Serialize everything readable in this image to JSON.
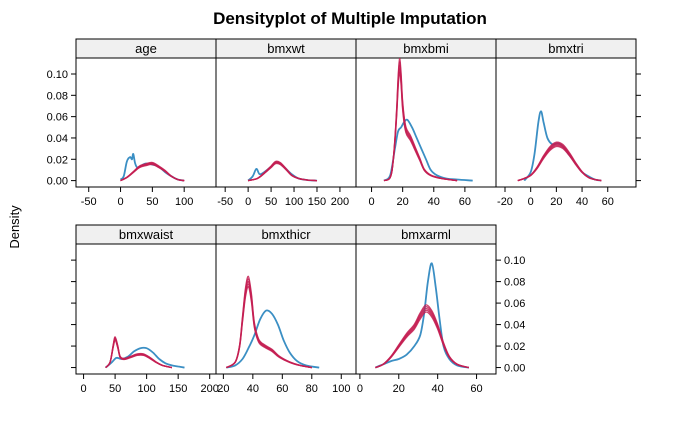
{
  "chart_data": {
    "type": "line",
    "title": "Densityplot of Multiple Imputation",
    "ylabel": "Density",
    "ylim": [
      -0.006,
      0.115
    ],
    "y_ticks": [
      0,
      0.02,
      0.04,
      0.06,
      0.08,
      0.1
    ],
    "y_tick_labels": [
      "0.00",
      "0.02",
      "0.04",
      "0.06",
      "0.08",
      "0.10"
    ],
    "colors": {
      "observed": "#3b8fc4",
      "imputed": "#c41e52",
      "strip_bg": "#f0f0f0"
    },
    "panels": [
      {
        "name": "age",
        "xlim": [
          -70,
          150
        ],
        "x_ticks": [
          -50,
          0,
          50,
          100
        ],
        "x_tick_labels": [
          "-50",
          "0",
          "50",
          "100"
        ],
        "observed": [
          [
            0,
            0.001
          ],
          [
            5,
            0.004
          ],
          [
            10,
            0.018
          ],
          [
            15,
            0.022
          ],
          [
            18,
            0.02
          ],
          [
            20,
            0.025
          ],
          [
            23,
            0.016
          ],
          [
            27,
            0.012
          ],
          [
            32,
            0.014
          ],
          [
            40,
            0.016
          ],
          [
            50,
            0.015
          ],
          [
            60,
            0.013
          ],
          [
            70,
            0.008
          ],
          [
            80,
            0.004
          ],
          [
            90,
            0.001
          ],
          [
            100,
            0
          ]
        ],
        "imputed": [
          [
            0,
            0
          ],
          [
            10,
            0.003
          ],
          [
            20,
            0.008
          ],
          [
            30,
            0.013
          ],
          [
            40,
            0.015
          ],
          [
            50,
            0.016
          ],
          [
            60,
            0.013
          ],
          [
            70,
            0.009
          ],
          [
            80,
            0.004
          ],
          [
            90,
            0.001
          ],
          [
            100,
            0
          ]
        ]
      },
      {
        "name": "bmxwt",
        "xlim": [
          -70,
          235
        ],
        "x_ticks": [
          -50,
          0,
          50,
          100,
          150,
          200
        ],
        "x_tick_labels": [
          "-50",
          "0",
          "50",
          "100",
          "150",
          "200"
        ],
        "observed": [
          [
            0,
            0
          ],
          [
            10,
            0.004
          ],
          [
            18,
            0.011
          ],
          [
            25,
            0.006
          ],
          [
            35,
            0.008
          ],
          [
            50,
            0.013
          ],
          [
            60,
            0.017
          ],
          [
            70,
            0.016
          ],
          [
            80,
            0.012
          ],
          [
            95,
            0.006
          ],
          [
            110,
            0.002
          ],
          [
            130,
            0.0005
          ],
          [
            150,
            0
          ]
        ],
        "imputed": [
          [
            0,
            0
          ],
          [
            20,
            0.002
          ],
          [
            35,
            0.007
          ],
          [
            50,
            0.013
          ],
          [
            60,
            0.017
          ],
          [
            70,
            0.016
          ],
          [
            82,
            0.011
          ],
          [
            95,
            0.005
          ],
          [
            110,
            0.002
          ],
          [
            130,
            0.0005
          ],
          [
            150,
            0
          ]
        ]
      },
      {
        "name": "bmxbmi",
        "xlim": [
          -10,
          80
        ],
        "x_ticks": [
          0,
          20,
          40,
          60
        ],
        "x_tick_labels": [
          "0",
          "20",
          "40",
          "60"
        ],
        "observed": [
          [
            8,
            0
          ],
          [
            12,
            0.005
          ],
          [
            15,
            0.03
          ],
          [
            17,
            0.046
          ],
          [
            19,
            0.05
          ],
          [
            21,
            0.055
          ],
          [
            23,
            0.057
          ],
          [
            26,
            0.05
          ],
          [
            29,
            0.04
          ],
          [
            32,
            0.03
          ],
          [
            35,
            0.02
          ],
          [
            38,
            0.01
          ],
          [
            42,
            0.005
          ],
          [
            48,
            0.002
          ],
          [
            55,
            0.001
          ],
          [
            65,
            0
          ]
        ],
        "imputed": [
          [
            8,
            0
          ],
          [
            12,
            0.003
          ],
          [
            14,
            0.02
          ],
          [
            16,
            0.06
          ],
          [
            17,
            0.09
          ],
          [
            18,
            0.108
          ],
          [
            19,
            0.095
          ],
          [
            20,
            0.07
          ],
          [
            22,
            0.048
          ],
          [
            25,
            0.04
          ],
          [
            28,
            0.03
          ],
          [
            31,
            0.02
          ],
          [
            34,
            0.01
          ],
          [
            38,
            0.005
          ],
          [
            45,
            0.002
          ],
          [
            55,
            0
          ]
        ]
      },
      {
        "name": "bmxtri",
        "xlim": [
          -27,
          82
        ],
        "x_ticks": [
          -20,
          0,
          20,
          40,
          60
        ],
        "x_tick_labels": [
          "-20",
          "0",
          "20",
          "40",
          "60"
        ],
        "observed": [
          [
            -5,
            0
          ],
          [
            0,
            0.008
          ],
          [
            3,
            0.025
          ],
          [
            6,
            0.055
          ],
          [
            8,
            0.065
          ],
          [
            10,
            0.055
          ],
          [
            13,
            0.04
          ],
          [
            17,
            0.034
          ],
          [
            21,
            0.035
          ],
          [
            25,
            0.032
          ],
          [
            30,
            0.024
          ],
          [
            35,
            0.016
          ],
          [
            40,
            0.008
          ],
          [
            45,
            0.004
          ],
          [
            50,
            0.001
          ],
          [
            55,
            0
          ]
        ],
        "imputed": [
          [
            -10,
            0
          ],
          [
            -5,
            0.002
          ],
          [
            0,
            0.005
          ],
          [
            5,
            0.012
          ],
          [
            10,
            0.022
          ],
          [
            15,
            0.03
          ],
          [
            20,
            0.034
          ],
          [
            25,
            0.032
          ],
          [
            30,
            0.025
          ],
          [
            35,
            0.016
          ],
          [
            40,
            0.008
          ],
          [
            45,
            0.003
          ],
          [
            50,
            0.001
          ],
          [
            55,
            0
          ]
        ]
      },
      {
        "name": "bmxwaist",
        "xlim": [
          -12,
          210
        ],
        "x_ticks": [
          0,
          50,
          100,
          150,
          200
        ],
        "x_tick_labels": [
          "0",
          "50",
          "100",
          "150",
          "200"
        ],
        "observed": [
          [
            35,
            0
          ],
          [
            45,
            0.005
          ],
          [
            52,
            0.009
          ],
          [
            60,
            0.008
          ],
          [
            70,
            0.01
          ],
          [
            80,
            0.015
          ],
          [
            90,
            0.018
          ],
          [
            100,
            0.018
          ],
          [
            110,
            0.014
          ],
          [
            120,
            0.008
          ],
          [
            130,
            0.004
          ],
          [
            140,
            0.002
          ],
          [
            150,
            0.001
          ],
          [
            160,
            0
          ]
        ],
        "imputed": [
          [
            35,
            0
          ],
          [
            42,
            0.005
          ],
          [
            47,
            0.02
          ],
          [
            50,
            0.027
          ],
          [
            54,
            0.02
          ],
          [
            58,
            0.01
          ],
          [
            65,
            0.008
          ],
          [
            75,
            0.01
          ],
          [
            85,
            0.012
          ],
          [
            95,
            0.012
          ],
          [
            105,
            0.009
          ],
          [
            115,
            0.005
          ],
          [
            125,
            0.002
          ],
          [
            140,
            0
          ]
        ]
      },
      {
        "name": "bmxthicr",
        "xlim": [
          15,
          110
        ],
        "x_ticks": [
          20,
          40,
          60,
          80,
          100
        ],
        "x_tick_labels": [
          "20",
          "40",
          "60",
          "80",
          "100"
        ],
        "observed": [
          [
            22,
            0
          ],
          [
            28,
            0.002
          ],
          [
            33,
            0.008
          ],
          [
            37,
            0.018
          ],
          [
            41,
            0.03
          ],
          [
            45,
            0.045
          ],
          [
            49,
            0.053
          ],
          [
            53,
            0.05
          ],
          [
            57,
            0.04
          ],
          [
            61,
            0.025
          ],
          [
            65,
            0.014
          ],
          [
            70,
            0.006
          ],
          [
            76,
            0.002
          ],
          [
            85,
            0
          ]
        ],
        "imputed": [
          [
            22,
            0
          ],
          [
            28,
            0.005
          ],
          [
            31,
            0.02
          ],
          [
            33,
            0.045
          ],
          [
            35,
            0.07
          ],
          [
            37,
            0.08
          ],
          [
            39,
            0.065
          ],
          [
            41,
            0.04
          ],
          [
            44,
            0.025
          ],
          [
            48,
            0.02
          ],
          [
            53,
            0.016
          ],
          [
            58,
            0.01
          ],
          [
            65,
            0.005
          ],
          [
            72,
            0.002
          ],
          [
            80,
            0
          ]
        ]
      },
      {
        "name": "bmxarml",
        "xlim": [
          -2,
          70
        ],
        "x_ticks": [
          0,
          20,
          40,
          60
        ],
        "x_tick_labels": [
          "0",
          "20",
          "40",
          "60"
        ],
        "observed": [
          [
            8,
            0
          ],
          [
            12,
            0.003
          ],
          [
            16,
            0.006
          ],
          [
            20,
            0.008
          ],
          [
            24,
            0.012
          ],
          [
            28,
            0.02
          ],
          [
            31,
            0.03
          ],
          [
            33,
            0.05
          ],
          [
            35,
            0.08
          ],
          [
            37,
            0.097
          ],
          [
            39,
            0.075
          ],
          [
            41,
            0.045
          ],
          [
            43,
            0.02
          ],
          [
            46,
            0.008
          ],
          [
            50,
            0.002
          ],
          [
            56,
            0
          ]
        ],
        "imputed": [
          [
            8,
            0
          ],
          [
            12,
            0.003
          ],
          [
            16,
            0.01
          ],
          [
            20,
            0.02
          ],
          [
            24,
            0.03
          ],
          [
            28,
            0.038
          ],
          [
            31,
            0.048
          ],
          [
            34,
            0.055
          ],
          [
            37,
            0.05
          ],
          [
            40,
            0.038
          ],
          [
            43,
            0.022
          ],
          [
            46,
            0.01
          ],
          [
            50,
            0.003
          ],
          [
            56,
            0
          ]
        ]
      }
    ]
  }
}
